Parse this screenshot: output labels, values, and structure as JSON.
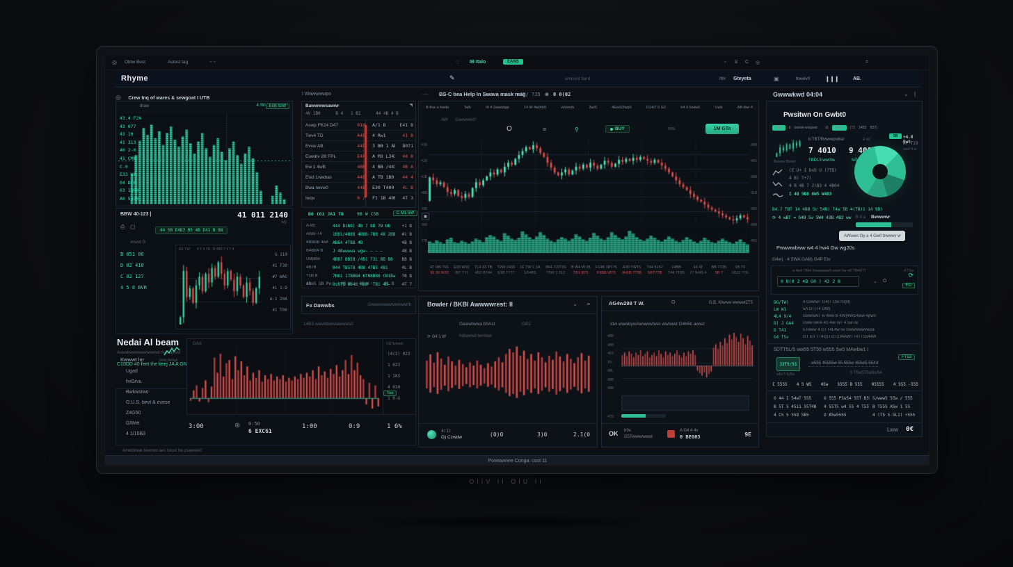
{
  "colors": {
    "teal": "#36d3a6",
    "tealDim": "#2aa183",
    "tealBright": "#4fe3b8",
    "red": "#d84f4c",
    "redDim": "#b23e3c",
    "grid": "#1a222c",
    "vol": "#2aa183"
  },
  "scene": {
    "brand_text": "OIIV II OIU II"
  },
  "topbar": {
    "pin": "◎",
    "menu": [
      "Obtw Best",
      "Autest tag",
      "+ +"
    ],
    "live_label": "IB Italo",
    "live_badge": "EANS",
    "win_icons": [
      "▫",
      "⌸",
      "C",
      "◎"
    ],
    "far_icon": "⌗"
  },
  "appbar": {
    "logo": "Rhyme",
    "center_label": "amount tand",
    "items": [
      "Itf#",
      "Gteyeta",
      "ttewlv0",
      "AB."
    ]
  },
  "left": {
    "panel_a": {
      "header": "Crew Inq of wares & sewgoat I UTB",
      "legend": "draw",
      "corner": "E0B S/W",
      "corner2": "4 /W-4",
      "axis": [
        "43.4 F2A",
        "43 077",
        "43 10",
        "41 313",
        "40 2-0",
        "41 CM8",
        "C-0",
        "E33 WA",
        "04 DC0",
        "03 1000",
        "A0 5330"
      ]
    },
    "panel_b": {
      "header": "BBW 40-123  |",
      "price": "41 011 2140",
      "price_sub": "wp",
      "pill": "44 5B E4B3 B5 4B E41 B 9B",
      "gray_label": "wwwd B",
      "labels": [
        "B 051 00",
        "D 02 410",
        "C 02 127",
        "4 5 0 BVR"
      ],
      "chart_top": "4 T 4 TB  . B   4B2   T 4 T 4",
      "chart_top2": "5/1 TW",
      "right_axis": [
        "G 110",
        "41 F30",
        "#7 WAG",
        "4i 1-D",
        "A-1 20A",
        "41 T00"
      ]
    },
    "insight": {
      "title": "Nedai Al beam",
      "badge": "DRS",
      "desc": "Asewtwwwwwwwwwwt-rwst dyswt",
      "link": "C10DD 40 feet the keej JA A GN43R",
      "button": "aww/s",
      "copy_icon": "⧉",
      "sub": "1000/7wa/5"
    },
    "bottom": {
      "head": "Kwwwt ler",
      "head2": "tww-twwa",
      "items": [
        "Ugad",
        "hvGrvu",
        "Bwkwstwo",
        "O.U.S. bevt & evese",
        "Z4G50",
        "G/Wet",
        "4 1/10B3"
      ],
      "chart_label": "GAA",
      "axis_head": "UUTwwwts",
      "axis": [
        "(4(3) 023",
        "1 023",
        "1 103",
        "4 030",
        "1 0-G"
      ],
      "marker": "Twa",
      "footer": {
        "t1": "3:00",
        "t2": "0:50",
        "t2b": "6 EXC61",
        "t3": "1:00",
        "t4": "0:9",
        "t5": "1 6%"
      },
      "note": "Amwbtwak tewmwt aes twust hw psawwe0"
    }
  },
  "mid": {
    "header": "I Wawwwwpo",
    "watchlist": {
      "title": "Bawwwwsawwr",
      "subhead": "4V 1B0      B 4   1 B1      44 4B 4 B",
      "rows": [
        {
          "name": "Aswp FK24 D47",
          "a": "010",
          "b": "A/1 B",
          "c": "E41 B",
          "red": false
        },
        {
          "name": "Twv4 TD",
          "a": "A4E",
          "b": "4 Rw1",
          "c": "41 B",
          "red": true
        },
        {
          "name": "Evvw AB",
          "a": "44E",
          "b": "3 BB 1 AB",
          "c": "B071",
          "red": false
        },
        {
          "name": "Ewwbv 2B FPL",
          "a": "E4F",
          "b": "A M3 L343",
          "c": "44 B",
          "red": true
        },
        {
          "name": "Ew 1 4wB",
          "a": "4BB",
          "b": "4 BB /443",
          "c": "4B A",
          "red": true
        },
        {
          "name": "Ewd Lwwbas",
          "a": "44B",
          "b": "A TB 1B0",
          "c": "44 4",
          "red": true
        },
        {
          "name": "Bwa rwvw0",
          "a": "44B",
          "b": "E30 T400",
          "c": "4L B",
          "red": true
        },
        {
          "name": "Iwqv",
          "a": "0 /",
          "b": "F1 1B 40B",
          "c": "4T 3",
          "red": false
        }
      ],
      "foot_l": "B0 (01 JA1 TB",
      "foot_m": "9B W C5B",
      "foot_badge": "C M1 5W"
    },
    "stats": {
      "rows": [
        {
          "l": "A-BE",
          "v": "444 B1BB) 4B 7 BB 7B BB",
          "r": "+1 B"
        },
        {
          "l": "ABB/-T4",
          "v": "1BB1/4BBB 4BBB-7BB 4B 2BB",
          "r": "#1 B"
        },
        {
          "l": "4BBBB 4w4",
          "v": "ABB4 4TBB 4B",
          "r": "4B B"
        },
        {
          "l": "B4BB4 B",
          "v": "J 4Bwwwwa wgw— — – —",
          "r": "4B B"
        },
        {
          "l": "UBpBw",
          "v": "4BB7 BB5B /4B1 T3L BB BB",
          "r": "BB B"
        },
        {
          "l": "4B7B",
          "v": "B44 TB5TB 4BB 47B5 4B1",
          "r": "4L B"
        },
        {
          "l": "+1B B",
          "v": "7BB1 17BBB4 BTBBBBB CB1Bw",
          "r": "7B B"
        },
        {
          "l": "12w",
          "v": "BvBTB BB4B 4BB 'TB1 4B-",
          "r": "4T 7"
        }
      ],
      "footer": "4B 5 1B Pw    41 W   41 W      41 B"
    },
    "fx": {
      "left": "Fx Dawwbs",
      "right": "Gwwwswwwwwwwwrth",
      "note": "14B3 wwwtbwwlawwws0"
    }
  },
  "center": {
    "chart": {
      "prefix": "·—",
      "title": "BS-C bea Help In Swava mask mag",
      "range": "r09/ 7J5",
      "time": "0 0(02",
      "toolbar": [
        "B-thw a hwde",
        "Ta/b",
        "I4 4 2ww/wpp",
        "14 W 4w0rb0",
        "wVwwb",
        "2w/0",
        "4Ew0/3wp0",
        "D14/7 0 G2",
        "h4 9 5wtw0",
        "Uwb",
        "AB-thw 4"
      ],
      "sub1": "AW",
      "sub2": "Gawwwwt?",
      "buy": "BUY",
      "more": "ww.",
      "order_btn": "1M GTa",
      "left_axis": [
        "43B",
        "42B",
        "41B",
        "4BB",
        "39B",
        "38B",
        "37B"
      ],
      "right_axis": [
        "4BB",
        "4B5",
        "4BB",
        "41B",
        "4B5",
        "4BB",
        "4B2"
      ],
      "x_clusters": [
        {
          "a": "4T W9  T91",
          "b": "95 30  W33",
          "red": true
        },
        {
          "a": "E33 W32",
          "b": "/BT T71",
          "red": false
        },
        {
          "a": "TL4 23 TB",
          "b": "4B2 BT44",
          "red": false
        },
        {
          "a": "T2W 2433",
          "b": "E1B T777",
          "red": false
        },
        {
          "a": "1F TW 1 1A",
          "b": "5/54B5",
          "red": false
        },
        {
          "a": "3N4 7J3T31",
          "b": "T5W 1 312",
          "red": false
        },
        {
          "a": "B W4 W 35",
          "b": "TB1 BT5",
          "red": true
        },
        {
          "a": "F14B 1BT75",
          "b": "F3BB WT5",
          "red": true
        },
        {
          "a": "A30 TWT5",
          "b": "3H1B 7T5B",
          "red": true
        },
        {
          "a": "T44 5L52",
          "b": "5BT7TB",
          "red": true
        },
        {
          "a": "14BB",
          "b": "T44 7TB5",
          "red": false
        },
        {
          "a": "44 4T",
          "b": "27 W4B 4",
          "red": false
        },
        {
          "a": "BB TT35",
          "b": "5B 7",
          "red": true
        },
        {
          "a": "1B 73",
          "b": "1B13 7TB",
          "red": false
        }
      ]
    },
    "panel_left": {
      "title": "Bowler / BKBI Awwwwrest: II",
      "chev": "⌄",
      "menu": "=",
      "sub": "Gawwtwwa bhAst",
      "sub2": "GB2",
      "controls": "⟳ G4  1 W",
      "controls2": "hdtwwwd twmbwr",
      "coin1": "4(1)",
      "coin2": "G) Czwdw",
      "ticks": [
        "(0)0",
        "3)0",
        "2.1(0"
      ]
    },
    "panel_right": {
      "title": "AG4w298 T W.",
      "icon": "O",
      "right": "G.B. KIwww wwwwt2T5",
      "label": "Idw wwwbywAwwwwbwo wwtwwt G4b5b awwz",
      "axis": [
        "4BB",
        "4BB",
        "4B2",
        "TB-",
        "4BL",
        "4BB",
        "4BB"
      ],
      "tick": "4TB",
      "f_icon": "OK",
      "f1": "h0v.",
      "f2": "G5Twwwwwwd",
      "f3": "A G4 4 4v",
      "f4": "0 BEG03",
      "f5": "9E"
    }
  },
  "right": {
    "header": "Gwwwkwd 04:04",
    "chev": "⌄",
    "pipe": "|",
    "section_title": "Pwsitwn On Gwbt0",
    "badges": [
      {
        "t": "EE",
        "g": true
      },
      {
        "t": "d"
      },
      {
        "t": "tawwk-wwgwat"
      },
      {
        "t": "."
      },
      {
        "t": "d)"
      },
      {
        "t": "E07",
        "g": true
      },
      {
        "t": "(73"
      },
      {
        "t": "14B3"
      },
      {
        "t": "B37)"
      }
    ],
    "hold": {
      "l1": "b TBT/Rwwwpwbar",
      "l1b": "a w/",
      "v1": "7 4010",
      "v2": "9 4002",
      "lk1": "TBD13.wwt0w",
      "lk2": "5AV0",
      "sub": "Bwwwv Btwwt"
    },
    "side": {
      "box": "5B",
      "s1": "+4.8 Ewt",
      "s2": "A) T23",
      "s3": "ww9 4 w"
    },
    "mini_rows": [
      "(E D+ I DvD   O (7TB)",
      "4 B) T+7)",
      "4 B 4B 7 2)B3 4 4B04"
    ],
    "mini_grn": "I 4B 5B0 6W5 W4B3",
    "stats1": "B4.7 TBT  14 4BB  5v  54B)  T4w 5B  4(TB)1  14 BB)",
    "stats2": "⟳ 4 wBT   ≈ G4B 5v   5W4 43B 4B2   ww",
    "prog_l": "B 4 a",
    "prog_b": "Bwwwwr",
    "tooltip": "AWwws Gy a 4 Gw0 bwwwv w",
    "perf_title": "Pwwwwbww w4 4 hw4 Gw wg20s",
    "perf_row": "G4w)   ·   4 5WA GAB) G4P      Ew",
    "inp": {
      "note": "-4 T2w",
      "hint": "w 4w4 TB44 5wwwwww5 wwwt 5w w5 TB44/TT",
      "value": "0 B(0 2 4B G0 ) 43 2 B",
      "chev": "⌄",
      "dot": "O",
      "ic1": "⟳",
      "ic2": "FG"
    },
    "list": [
      {
        "k": "DG/TW)",
        "t": "4 GwwwT G4(T Ow /G(B)"
      },
      {
        "k": "LW W1",
        "t": "5A DT)T4 DW)"
      },
      {
        "k": "4L4 9/4",
        "t": "GwwwwT w 4ww B 4W)4WE4ww-4pw0"
      },
      {
        "k": "D) J GA4",
        "t": "GwwTw04 4S 4wTwT 4 5wTw"
      },
      {
        "k": "D T41",
        "t": "5Twww 4 GTT4L4w 5v Gwwwwwvw2a"
      },
      {
        "k": "G4 T5v",
        "t": "GT E5 TT4G) I DT234AWTT4TT5544W"
      }
    ],
    "heading2": "5DTT5L/5 ww55 5T55 w555 5w5 MAwbw1  I",
    "pnl": {
      "box": "J2T5/51",
      "box_sub": "w5z 5 5y5w",
      "badge": "FT53",
      "dots": "·  w555 45555w 55 555w 455w5-55X4",
      "dots2": "5 T5w5T5w5w54"
    },
    "stat_row": [
      "I 5555",
      "4 5 W5",
      "45w",
      "5555 B 555",
      "05555",
      "4 555 -555"
    ],
    "grid": {
      "c1": [
        "O 44 I  54wT  555",
        "B 5T 5  4511 55T4B",
        "4 C5 5  55B  5B5"
      ],
      "c2": [
        "O 555  P5w54  55T B55",
        "4 55T5 w4 55 4 T55T",
        "O B5w5555"
      ],
      "c3": [
        "5/www5  55w / 555",
        "B T555  A5w  1 55",
        "4 (T5 5.5L1)  +555"
      ]
    },
    "last_l": "Lww",
    "last_v": "0€"
  },
  "statusbar": {
    "text": "Powtawnee Conga:  cost  11"
  },
  "charts": {
    "depth": {
      "bars": [
        0,
        0,
        0,
        36,
        58,
        75,
        90,
        82,
        94,
        78,
        86,
        70,
        84,
        92,
        76,
        68,
        80,
        88,
        72,
        60,
        74,
        84,
        66,
        56,
        70,
        78,
        62,
        52,
        66,
        74,
        58,
        48,
        60,
        68,
        54,
        38,
        16,
        0,
        0,
        10,
        22,
        14,
        6,
        0
      ]
    },
    "mini": {
      "closes": [
        30,
        62,
        44,
        50,
        40,
        52,
        58,
        48,
        60,
        54,
        64,
        58,
        68,
        60,
        52,
        62,
        56,
        48,
        58,
        52,
        44,
        54,
        48,
        40,
        50,
        58
      ]
    },
    "main": {
      "closes": [
        55,
        52,
        48,
        50,
        45,
        40,
        38,
        42,
        36,
        34,
        38,
        35,
        44,
        50,
        47,
        52,
        56,
        60,
        58,
        63,
        60,
        66,
        70,
        68,
        74,
        78,
        82,
        86,
        84,
        88,
        85,
        80,
        76,
        70,
        65,
        60,
        57,
        60,
        63,
        58,
        62,
        66,
        64,
        68,
        65,
        70,
        67,
        64,
        68,
        72,
        70,
        66,
        69,
        73,
        71,
        74,
        72,
        75,
        73,
        76,
        74,
        72,
        70,
        73,
        70,
        67,
        64,
        60,
        56,
        52,
        48,
        45,
        42,
        38,
        35,
        32,
        30,
        27,
        24,
        22,
        20,
        18,
        16,
        14,
        12,
        11,
        13,
        16,
        14,
        12
      ],
      "volume": [
        32,
        28,
        35,
        30,
        26,
        38,
        42,
        30,
        28,
        34,
        30,
        26,
        32,
        40,
        36,
        30,
        44,
        50,
        46,
        38,
        34,
        55,
        48,
        40,
        36,
        42,
        60,
        52,
        44,
        38,
        46,
        58,
        50,
        40,
        34,
        30,
        38,
        44,
        40,
        34,
        40,
        52,
        46,
        38,
        34,
        42,
        56,
        48,
        40,
        36,
        44,
        58,
        50,
        42,
        38,
        46,
        62,
        54,
        44,
        38,
        34,
        40,
        48,
        42,
        36,
        32,
        38,
        46,
        40,
        34,
        30,
        36,
        44,
        38,
        32,
        28,
        34,
        42,
        36,
        30,
        28,
        34,
        40,
        34,
        30,
        26,
        32,
        38,
        30,
        24
      ]
    },
    "red1": {
      "vals": [
        -8,
        12,
        20,
        -10,
        16,
        28,
        -12,
        18,
        64,
        40,
        70,
        34,
        55,
        60,
        30,
        66,
        44,
        58,
        36,
        50,
        28,
        40,
        32,
        44,
        26,
        36,
        30,
        38,
        28,
        34,
        30,
        36,
        26,
        32,
        28,
        34,
        30,
        38,
        32,
        40,
        34,
        44,
        30,
        50,
        36,
        42,
        32,
        46,
        38,
        52,
        34,
        44,
        60,
        38,
        68,
        44,
        56,
        36,
        30,
        -18,
        24,
        -30,
        20,
        -24
      ]
    },
    "red2": {
      "vals": [
        40,
        55,
        35,
        60,
        45,
        30,
        50,
        38,
        28,
        42,
        32,
        24,
        36,
        28,
        40,
        30,
        22,
        34,
        26,
        38,
        48,
        36,
        56,
        68,
        60,
        74,
        52,
        64,
        44,
        56,
        40,
        60,
        48,
        36,
        52,
        42,
        62,
        50,
        38,
        56,
        44,
        34,
        48,
        58,
        40,
        52
      ]
    },
    "red3": {
      "vals": [
        18,
        22,
        16,
        24,
        20,
        14,
        22,
        18,
        26,
        16,
        20,
        24,
        14,
        18,
        22,
        16,
        26,
        20,
        14,
        24,
        18,
        22,
        16,
        20,
        26,
        18,
        14,
        22,
        16,
        24,
        20,
        26,
        18,
        -12,
        -18,
        -24,
        -16,
        -28,
        -20,
        -14,
        30,
        36,
        28,
        40,
        34,
        46,
        38,
        52,
        44,
        58,
        48,
        40,
        54,
        46,
        36,
        50,
        42,
        34
      ]
    },
    "spark": {
      "closes": [
        10,
        18,
        14,
        22,
        16,
        24,
        20,
        26
      ]
    }
  }
}
